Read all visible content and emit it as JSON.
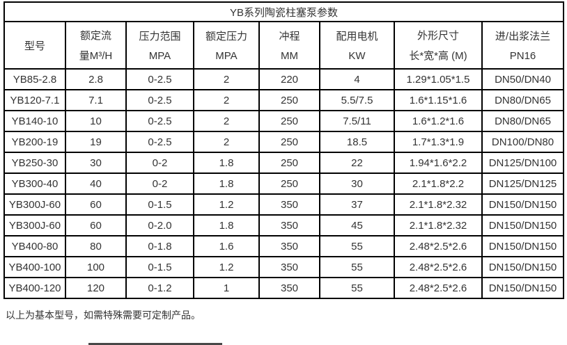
{
  "table": {
    "title": "YB系列陶瓷柱塞泵参数",
    "columns": [
      {
        "line1": "型号",
        "line2": ""
      },
      {
        "line1": "额定流",
        "line2": "量M³/H"
      },
      {
        "line1": "压力范围",
        "line2": "MPA"
      },
      {
        "line1": "额定压力",
        "line2": "MPA"
      },
      {
        "line1": "冲程",
        "line2": "MM"
      },
      {
        "line1": "配用电机",
        "line2": "KW"
      },
      {
        "line1": "外形尺寸",
        "line2": "长*宽*高 (M)"
      },
      {
        "line1": "进/出浆法兰",
        "line2": "PN16"
      }
    ],
    "rows": [
      [
        "YB85-2.8",
        "2.8",
        "0-2.5",
        "2",
        "220",
        "4",
        "1.29*1.05*1.5",
        "DN50/DN40"
      ],
      [
        "YB120-7.1",
        "7.1",
        "0-2.5",
        "2",
        "250",
        "5.5/7.5",
        "1.6*1.15*1.6",
        "DN80/DN65"
      ],
      [
        "YB140-10",
        "10",
        "0-2.5",
        "2",
        "250",
        "7.5/11",
        "1.6*1.2*1.6",
        "DN80/DN65"
      ],
      [
        "YB200-19",
        "19",
        "0-2.5",
        "2",
        "250",
        "18.5",
        "1.7*1.3*1.9",
        "DN100/DN80"
      ],
      [
        "YB250-30",
        "30",
        "0-2",
        "1.8",
        "250",
        "22",
        "1.94*1.6*2.2",
        "DN125/DN100"
      ],
      [
        "YB300-40",
        "40",
        "0-2",
        "1.8",
        "250",
        "30",
        "2.1*1.8*2.2",
        "DN125/DN125"
      ],
      [
        "YB300J-60",
        "60",
        "0-1.5",
        "1.2",
        "350",
        "37",
        "2.1*1.8*2.32",
        "DN150/DN150"
      ],
      [
        "YB300J-60",
        "60",
        "0-2.0",
        "1.8",
        "350",
        "45",
        "2.1*1.8*2.32",
        "DN150/DN150"
      ],
      [
        "YB400-80",
        "80",
        "0-1.8",
        "1.6",
        "350",
        "55",
        "2.48*2.5*2.6",
        "DN150/DN150"
      ],
      [
        "YB400-100",
        "100",
        "0-1.5",
        "1.2",
        "350",
        "55",
        "2.48*2.5*2.6",
        "DN150/DN150"
      ],
      [
        "YB400-120",
        "120",
        "0-1.2",
        "1",
        "350",
        "55",
        "2.48*2.5*2.6",
        "DN150/DN150"
      ]
    ]
  },
  "footer": {
    "note": "以上为基本型号，如需特殊需要可定制产品。"
  },
  "colors": {
    "border": "#000000",
    "text": "#333333",
    "title_text": "#222222",
    "cutoff_bar": "#474747"
  }
}
